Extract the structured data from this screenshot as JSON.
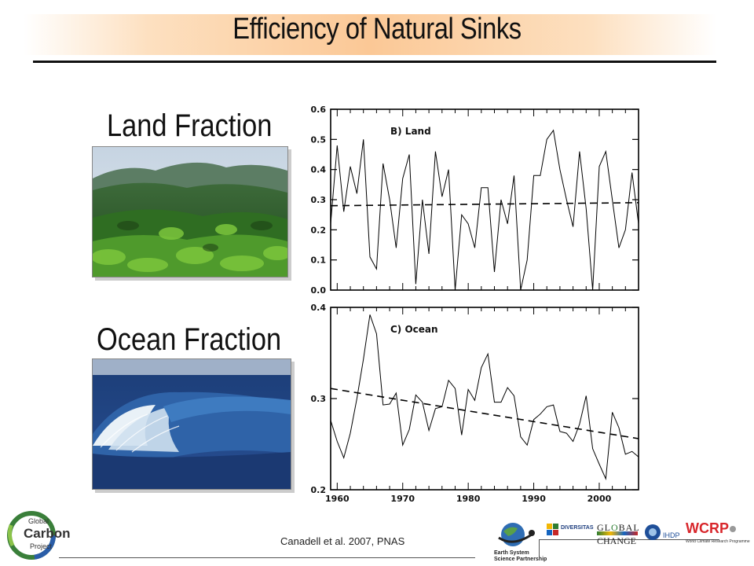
{
  "title": "Efficiency of Natural Sinks",
  "land_label": "Land Fraction",
  "ocean_label": "Ocean Fraction",
  "citation": "Canadell et al. 2007, PNAS",
  "logos": {
    "gcp": [
      "Global",
      "Carbon",
      "Project"
    ],
    "essp": [
      "Earth System",
      "Science Partnership"
    ],
    "diversitas": "DIVERSITAS",
    "global_change": [
      "GL",
      "BAL",
      "CHANGE"
    ],
    "ihdp": "IHDP",
    "wcrp": "WCRP",
    "wcrp_sub": "World Climate Research Programme"
  },
  "colors": {
    "title_band": "#fbc896",
    "wcrp_red": "#d8262b",
    "line": "#000000"
  },
  "chart_data": [
    {
      "type": "line",
      "panel_label": "B) Land",
      "ylim": [
        0.0,
        0.6
      ],
      "yticks": [
        "0.0",
        "0.1",
        "0.2",
        "0.3",
        "0.4",
        "0.5",
        "0.6"
      ],
      "xlim": [
        1959,
        2006
      ],
      "x": [
        1959,
        1960,
        1961,
        1962,
        1963,
        1964,
        1965,
        1966,
        1967,
        1968,
        1969,
        1970,
        1971,
        1972,
        1973,
        1974,
        1975,
        1976,
        1977,
        1978,
        1979,
        1980,
        1981,
        1982,
        1983,
        1984,
        1985,
        1986,
        1987,
        1988,
        1989,
        1990,
        1991,
        1992,
        1993,
        1994,
        1995,
        1996,
        1997,
        1998,
        1999,
        2000,
        2001,
        2002,
        2003,
        2004,
        2005,
        2006
      ],
      "series": [
        {
          "style": "solid",
          "values": [
            0.22,
            0.48,
            0.26,
            0.41,
            0.32,
            0.5,
            0.11,
            0.07,
            0.42,
            0.3,
            0.14,
            0.37,
            0.45,
            0.02,
            0.3,
            0.12,
            0.46,
            0.31,
            0.4,
            -0.02,
            0.25,
            0.22,
            0.14,
            0.34,
            0.34,
            0.06,
            0.3,
            0.22,
            0.38,
            -0.02,
            0.1,
            0.38,
            0.38,
            0.5,
            0.53,
            0.4,
            0.3,
            0.21,
            0.46,
            0.27,
            -0.02,
            0.41,
            0.46,
            0.3,
            0.14,
            0.2,
            0.39,
            0.22
          ]
        },
        {
          "style": "dashed",
          "values": [
            0.28,
            0.29
          ],
          "x": [
            1959,
            2006
          ]
        }
      ]
    },
    {
      "type": "line",
      "panel_label": "C) Ocean",
      "ylim": [
        0.2,
        0.4
      ],
      "yticks": [
        "0.2",
        "0.3",
        "0.4"
      ],
      "xlim": [
        1959,
        2006
      ],
      "xticks": [
        "1960",
        "1970",
        "1980",
        "1990",
        "2000"
      ],
      "x": [
        1959,
        1960,
        1961,
        1962,
        1963,
        1964,
        1965,
        1966,
        1967,
        1968,
        1969,
        1970,
        1971,
        1972,
        1973,
        1974,
        1975,
        1976,
        1977,
        1978,
        1979,
        1980,
        1981,
        1982,
        1983,
        1984,
        1985,
        1986,
        1987,
        1988,
        1989,
        1990,
        1991,
        1992,
        1993,
        1994,
        1995,
        1996,
        1997,
        1998,
        1999,
        2000,
        2001,
        2002,
        2003,
        2004,
        2005,
        2006
      ],
      "series": [
        {
          "style": "solid",
          "values": [
            0.276,
            0.253,
            0.235,
            0.262,
            0.3,
            0.343,
            0.392,
            0.371,
            0.293,
            0.294,
            0.306,
            0.249,
            0.266,
            0.304,
            0.296,
            0.265,
            0.289,
            0.291,
            0.32,
            0.311,
            0.26,
            0.31,
            0.298,
            0.334,
            0.349,
            0.296,
            0.296,
            0.312,
            0.303,
            0.258,
            0.249,
            0.277,
            0.283,
            0.291,
            0.293,
            0.264,
            0.262,
            0.253,
            0.272,
            0.303,
            0.245,
            0.228,
            0.212,
            0.285,
            0.268,
            0.239,
            0.242,
            0.236
          ]
        },
        {
          "style": "dashed",
          "values": [
            0.311,
            0.256
          ],
          "x": [
            1959,
            2006
          ]
        }
      ]
    }
  ]
}
